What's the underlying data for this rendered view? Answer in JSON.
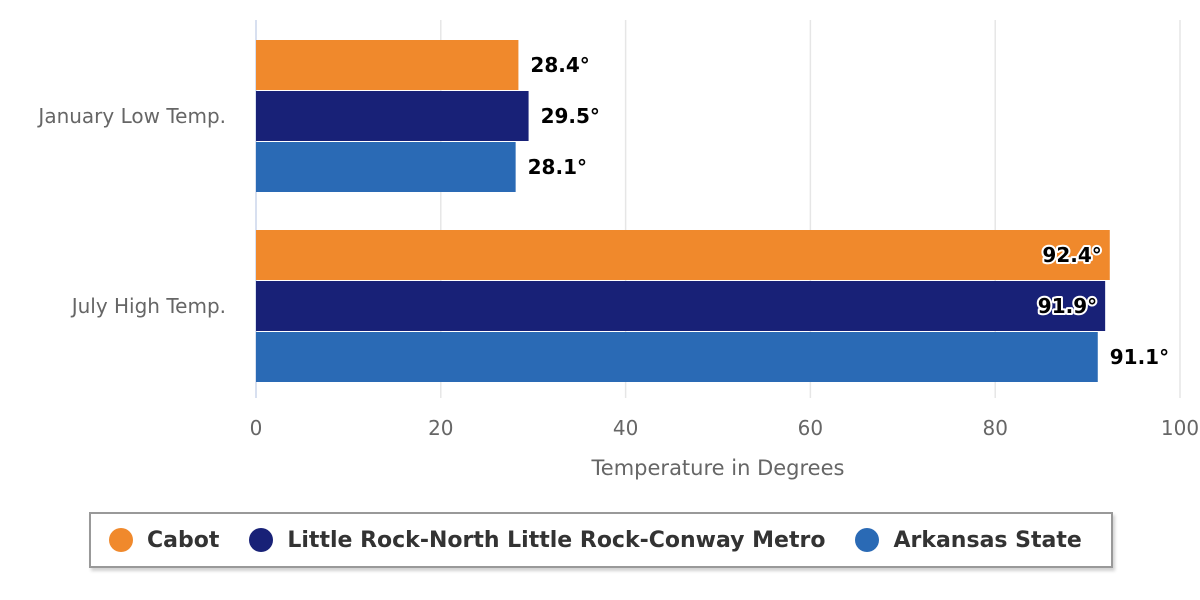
{
  "chart_data": {
    "type": "bar",
    "orientation": "horizontal",
    "categories": [
      "January Low Temp.",
      "July High Temp."
    ],
    "series": [
      {
        "name": "Cabot",
        "color": "#f0892c",
        "values": [
          28.4,
          92.4
        ],
        "labels": [
          "28.4°",
          "92.4°"
        ]
      },
      {
        "name": "Little Rock-North Little Rock-Conway Metro",
        "color": "#182177",
        "values": [
          29.5,
          91.9
        ],
        "labels": [
          "29.5°",
          "91.9°"
        ]
      },
      {
        "name": "Arkansas State",
        "color": "#2a6ab5",
        "values": [
          28.1,
          91.1
        ],
        "labels": [
          "28.1°",
          "91.1°"
        ]
      }
    ],
    "xlabel": "Temperature in Degrees",
    "ylabel": "",
    "xlim": [
      0,
      100
    ],
    "ticks": [
      "0",
      "20",
      "40",
      "60",
      "80",
      "100"
    ],
    "grid": true,
    "legend_position": "bottom"
  },
  "legend": {
    "items": [
      {
        "label": "Cabot",
        "color": "#f0892c"
      },
      {
        "label": "Little Rock-North Little Rock-Conway Metro",
        "color": "#182177"
      },
      {
        "label": "Arkansas State",
        "color": "#2a6ab5"
      }
    ]
  }
}
